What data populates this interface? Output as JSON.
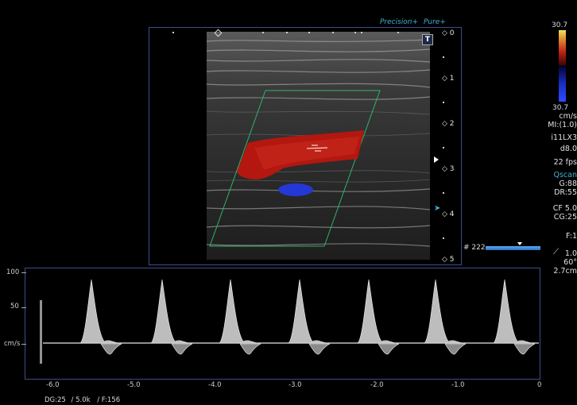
{
  "brand": {
    "precision": "Precision+",
    "pure": "Pure+"
  },
  "colorbar": {
    "top_value": "30.7",
    "bottom_value": "30.7",
    "unit": "cm/s",
    "colors": {
      "warm_top": "#f0e060",
      "warm_mid": "#c0241a",
      "cool_bottom": "#2a4cff"
    }
  },
  "right_panel": {
    "mi": "MI:(1.0)",
    "probe": "i11LX3",
    "depth": "d8.0",
    "fps": "22 fps",
    "qscan": "Qscan",
    "gain": "G:88",
    "dynamic_range": "DR:55",
    "cf": "CF 5.0",
    "cg": "CG:25",
    "focus": "F:1",
    "angle_value": "1.0",
    "angle_deg": "60°",
    "gate_size": "2.7cm"
  },
  "depth_markers": [
    "0",
    "1",
    "2",
    "3",
    "4",
    "5"
  ],
  "frame_counter": {
    "label": "# 222"
  },
  "t_button": "T",
  "spectral": {
    "y_ticks": [
      "100",
      "50",
      "cm/s"
    ],
    "x_ticks": [
      "-6.0",
      "-5.0",
      "-4.0",
      "-3.0",
      "-2.0",
      "-1.0",
      "0"
    ]
  },
  "bottom_status": {
    "dg": "DG:25",
    "prf": "/ 5.0k",
    "filter": "/ F:156"
  }
}
